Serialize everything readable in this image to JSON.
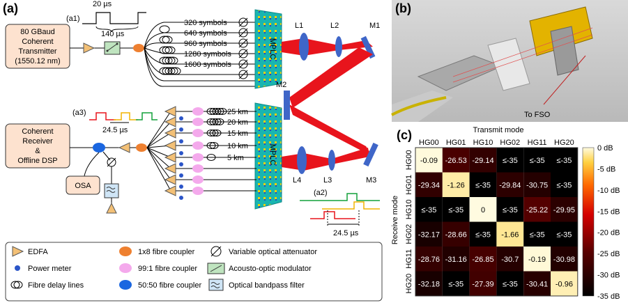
{
  "panel_a": {
    "label": "(a)",
    "a1_label": "(a1)",
    "a1_pulse_width": "20 µs",
    "a1_period": "140 µs",
    "transmitter": [
      "80 GBaud",
      "Coherent",
      "Transmitter",
      "(1550.12 nm)"
    ],
    "delays_tx": [
      "320 symbols",
      "640 symbols",
      "960 symbols",
      "1280 symbols",
      "1600 symbols"
    ],
    "mplc_label": "MPLC",
    "optics": [
      "L1",
      "L2",
      "M1",
      "M2",
      "L4",
      "L3",
      "M3"
    ],
    "a3_label": "(a3)",
    "a3_timing": "24.5 µs",
    "receiver": [
      "Coherent",
      "Receiver",
      "&",
      "Offline DSP"
    ],
    "osa": "OSA",
    "delays_rx": [
      "25 km",
      "20 km",
      "15 km",
      "10 km",
      "5 km"
    ],
    "a2_label": "(a2)",
    "a2_timing": "24.5 µs"
  },
  "legend": [
    {
      "icon": "edfa-icon",
      "label": "EDFA"
    },
    {
      "icon": "power-meter-icon",
      "label": "Power meter"
    },
    {
      "icon": "fibre-delay-icon",
      "label": "Fibre delay lines"
    },
    {
      "icon": "coupler-1x8-icon",
      "label": "1x8 fibre coupler"
    },
    {
      "icon": "coupler-99-1-icon",
      "label": "99:1 fibre coupler"
    },
    {
      "icon": "coupler-50-50-icon",
      "label": "50:50 fibre coupler"
    },
    {
      "icon": "voa-icon",
      "label": "Variable optical attenuator"
    },
    {
      "icon": "aom-icon",
      "label": "Acousto-optic modulator"
    },
    {
      "icon": "bandpass-filter-icon",
      "label": "Optical bandpass filter"
    }
  ],
  "panel_b": {
    "label": "(b)",
    "annotation": "To FSO"
  },
  "panel_c": {
    "label": "(c)",
    "xlabel": "Transmit mode",
    "ylabel": "Receive mode",
    "cols": [
      "HG00",
      "HG01",
      "HG10",
      "HG02",
      "HG11",
      "HG20"
    ],
    "rows": [
      "HG00",
      "HG01",
      "HG10",
      "HG02",
      "HG11",
      "HG20"
    ],
    "cells": [
      [
        "-0.09",
        "-26.53",
        "-29.14",
        "≤-35",
        "≤-35",
        "≤-35"
      ],
      [
        "-29.34",
        "-1.26",
        "≤-35",
        "-29.84",
        "-30.75",
        "≤-35"
      ],
      [
        "≤-35",
        "≤-35",
        "0",
        "≤-35",
        "-25.22",
        "-29.95"
      ],
      [
        "-32.17",
        "-28.66",
        "≤-35",
        "-1.66",
        "≤-35",
        "≤-35"
      ],
      [
        "-28.76",
        "-31.16",
        "-26.85",
        "-30.7",
        "-0.19",
        "-30.98"
      ],
      [
        "-32.18",
        "≤-35",
        "-27.39",
        "≤-35",
        "-30.41",
        "-0.96"
      ]
    ],
    "colorbar_ticks": [
      "0 dB",
      "-5 dB",
      "-10 dB",
      "-15 dB",
      "-20 dB",
      "-25 dB",
      "-30 dB",
      "-35 dB"
    ]
  },
  "chart_data": {
    "type": "heatmap",
    "x": [
      "HG00",
      "HG01",
      "HG10",
      "HG02",
      "HG11",
      "HG20"
    ],
    "y": [
      "HG00",
      "HG01",
      "HG10",
      "HG02",
      "HG11",
      "HG20"
    ],
    "values": [
      [
        -0.09,
        -26.53,
        -29.14,
        -35,
        -35,
        -35
      ],
      [
        -29.34,
        -1.26,
        -35,
        -29.84,
        -30.75,
        -35
      ],
      [
        -35,
        -35,
        0,
        -35,
        -25.22,
        -29.95
      ],
      [
        -32.17,
        -28.66,
        -35,
        -1.66,
        -35,
        -35
      ],
      [
        -28.76,
        -31.16,
        -26.85,
        -30.7,
        -0.19,
        -30.98
      ],
      [
        -32.18,
        -35,
        -27.39,
        -35,
        -30.41,
        -0.96
      ]
    ],
    "xlabel": "Transmit mode",
    "ylabel": "Receive mode",
    "colorbar_range": [
      -35,
      0
    ]
  }
}
